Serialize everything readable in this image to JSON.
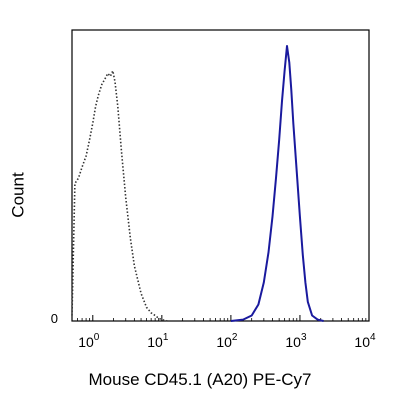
{
  "chart_data": {
    "type": "line",
    "title": "",
    "xlabel": "Mouse CD45.1 (A20) PE-Cy7",
    "ylabel": "Count",
    "x_scale": "log",
    "xlim": [
      0.5,
      10000
    ],
    "ylim": [
      0,
      100
    ],
    "x_ticks": [
      {
        "base": "10",
        "exp": "0",
        "value": 1
      },
      {
        "base": "10",
        "exp": "1",
        "value": 10
      },
      {
        "base": "10",
        "exp": "2",
        "value": 100
      },
      {
        "base": "10",
        "exp": "3",
        "value": 1000
      },
      {
        "base": "10",
        "exp": "4",
        "value": 10000
      }
    ],
    "y_ticks": [
      {
        "label": "0",
        "value": 0
      }
    ],
    "grid": false,
    "series": [
      {
        "color": "#333333",
        "style": "dotted",
        "x": [
          0.5,
          0.55,
          0.62,
          0.7,
          0.8,
          0.9,
          1.0,
          1.1,
          1.2,
          1.35,
          1.5,
          1.65,
          1.8,
          1.95,
          2.1,
          2.3,
          2.6,
          3.0,
          3.5,
          4.0,
          5.0,
          6.0,
          7.0,
          8.0,
          9.0,
          10.0,
          12.0
        ],
        "y": [
          2,
          50,
          52,
          56,
          60,
          66,
          72,
          78,
          82,
          86,
          88,
          90,
          89,
          91,
          87,
          78,
          62,
          45,
          30,
          20,
          10,
          5,
          3,
          2,
          1,
          0.5,
          0
        ]
      },
      {
        "color": "#1a1a9e",
        "style": "solid",
        "x": [
          100,
          150,
          200,
          250,
          300,
          350,
          400,
          450,
          500,
          550,
          600,
          650,
          700,
          750,
          800,
          900,
          1000,
          1100,
          1200,
          1300,
          1500,
          1800,
          2200
        ],
        "y": [
          0,
          0.5,
          2,
          6,
          14,
          25,
          38,
          52,
          66,
          80,
          91,
          100,
          94,
          84,
          72,
          54,
          38,
          24,
          14,
          7,
          2,
          0.5,
          0
        ]
      }
    ]
  }
}
